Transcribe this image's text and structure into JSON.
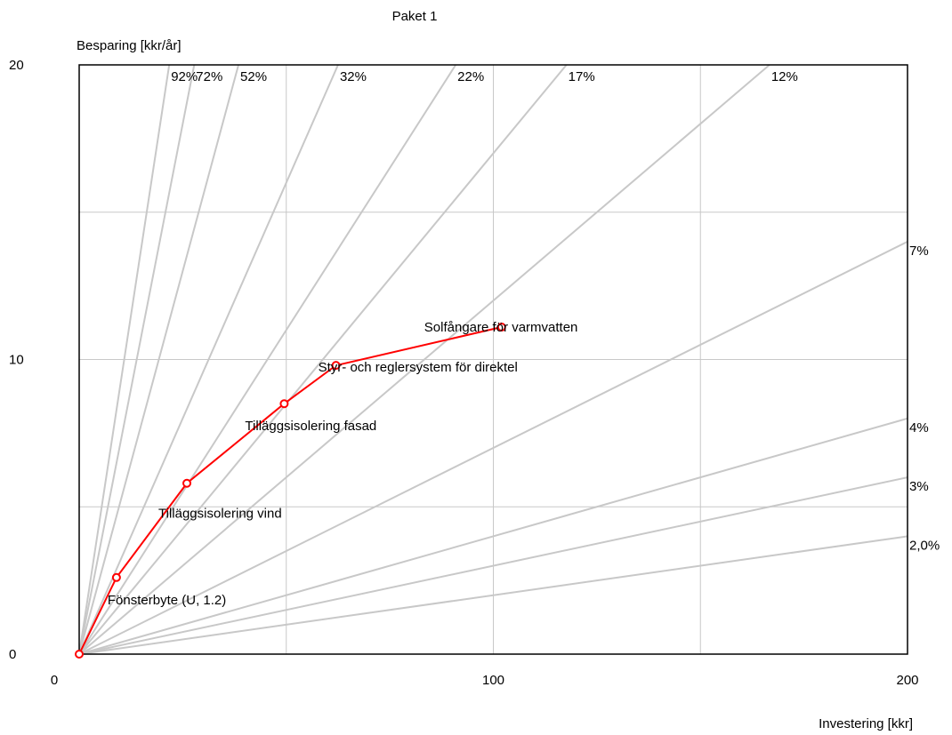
{
  "chart_data": {
    "type": "line",
    "title": "Paket 1",
    "ylabel": "Besparing [kkr/år]",
    "xlabel": "Investering [kkr]",
    "xlim": [
      0,
      200
    ],
    "ylim": [
      0,
      20
    ],
    "x_ticks": [
      0,
      100,
      200
    ],
    "y_ticks": [
      0,
      10,
      20
    ],
    "grid": true,
    "reference_lines": [
      {
        "label": "92%",
        "rate": 0.92
      },
      {
        "label": "72%",
        "rate": 0.72
      },
      {
        "label": "52%",
        "rate": 0.52
      },
      {
        "label": "32%",
        "rate": 0.32
      },
      {
        "label": "22%",
        "rate": 0.22
      },
      {
        "label": "17%",
        "rate": 0.17
      },
      {
        "label": "12%",
        "rate": 0.12
      },
      {
        "label": "7%",
        "rate": 0.07
      },
      {
        "label": "4%",
        "rate": 0.04
      },
      {
        "label": "3%",
        "rate": 0.03
      },
      {
        "label": "2,0%",
        "rate": 0.02
      }
    ],
    "series": [
      {
        "color": "#ff0000",
        "points": [
          {
            "x": 0,
            "y": 0,
            "label": ""
          },
          {
            "x": 9,
            "y": 2.6,
            "label": "Fönsterbyte (U, 1.2)"
          },
          {
            "x": 26,
            "y": 5.8,
            "label": "Tilläggsisolering vind"
          },
          {
            "x": 49.5,
            "y": 8.5,
            "label": "Tilläggsisolering fasad"
          },
          {
            "x": 62,
            "y": 9.8,
            "label": "Styr- och reglersystem för direktel"
          },
          {
            "x": 102,
            "y": 11.1,
            "label": "Solfångare för varmvatten"
          }
        ]
      }
    ]
  }
}
